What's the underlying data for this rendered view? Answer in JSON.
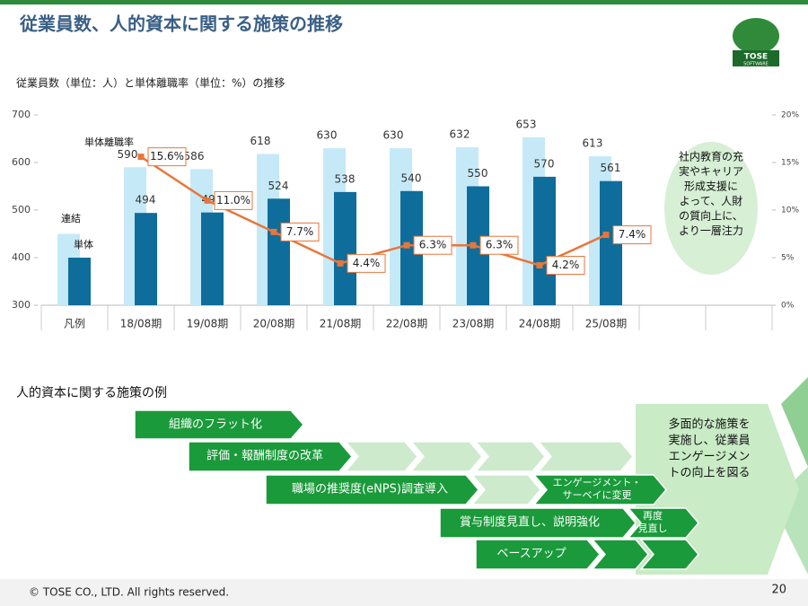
{
  "header": {
    "title": "従業員数、人的資本に関する施策の推移",
    "logo": "TOSE",
    "logo_sub": "SOFTWARE"
  },
  "chart_data": {
    "type": "bar",
    "subtitle": "従業員数（単位：人）と単体離職率（単位：%）の推移",
    "categories": [
      "凡例",
      "18/08期",
      "19/08期",
      "20/08期",
      "21/08期",
      "22/08期",
      "23/08期",
      "24/08期",
      "25/08期",
      null,
      null
    ],
    "series": [
      {
        "name": "連結",
        "color": "#c5e9f7",
        "values": [
          450,
          590,
          586,
          618,
          630,
          630,
          632,
          653,
          613,
          null,
          null
        ]
      },
      {
        "name": "単体",
        "color": "#0f6d9b",
        "values": [
          400,
          494,
          495,
          524,
          538,
          540,
          550,
          570,
          561,
          null,
          null
        ]
      },
      {
        "name": "単体離職率",
        "type": "line",
        "axis": "y2",
        "color": "#e8763a",
        "values": [
          null,
          15.6,
          11.0,
          7.7,
          4.4,
          6.3,
          6.3,
          4.2,
          7.4,
          null,
          null
        ],
        "value_labels": [
          null,
          "15.6%",
          "11.0%",
          "7.7%",
          "4.4%",
          "6.3%",
          "6.3%",
          "4.2%",
          "7.4%",
          null,
          null
        ]
      }
    ],
    "ylim": [
      300,
      700
    ],
    "yticks": [
      300,
      400,
      500,
      600,
      700
    ],
    "y2lim": [
      0,
      20
    ],
    "y2ticks": [
      {
        "value": 0,
        "label": "0%"
      },
      {
        "value": 5,
        "label": "5%"
      },
      {
        "value": 10,
        "label": "10%"
      },
      {
        "value": 15,
        "label": "15%"
      },
      {
        "value": 20,
        "label": "20%"
      }
    ],
    "grid": false,
    "annotation": [
      "社内教育の充",
      "実やキャリア",
      "形成支援に",
      "よって、人財",
      "の質向上に、",
      "より一層注力"
    ]
  },
  "measures": {
    "title": "人的資本に関する施策の例",
    "items": [
      [
        "組織のフラット化"
      ],
      [
        "評価・報酬制度の改革"
      ],
      [
        "職場の推奨度(eNPS)調査導入"
      ],
      [
        "エンゲージメント・",
        "サーベイに変更"
      ],
      [
        "賞与制度見直し、説明強化"
      ],
      [
        "再度",
        "見直し"
      ],
      [
        "ベースアップ"
      ]
    ],
    "summary": [
      "多面的な施策を",
      "実施し、従業員",
      "エンゲージメン",
      "トの向上を図る"
    ]
  },
  "footer": {
    "copyright": "© TOSE CO., LTD. All rights reserved.",
    "page": "20"
  }
}
